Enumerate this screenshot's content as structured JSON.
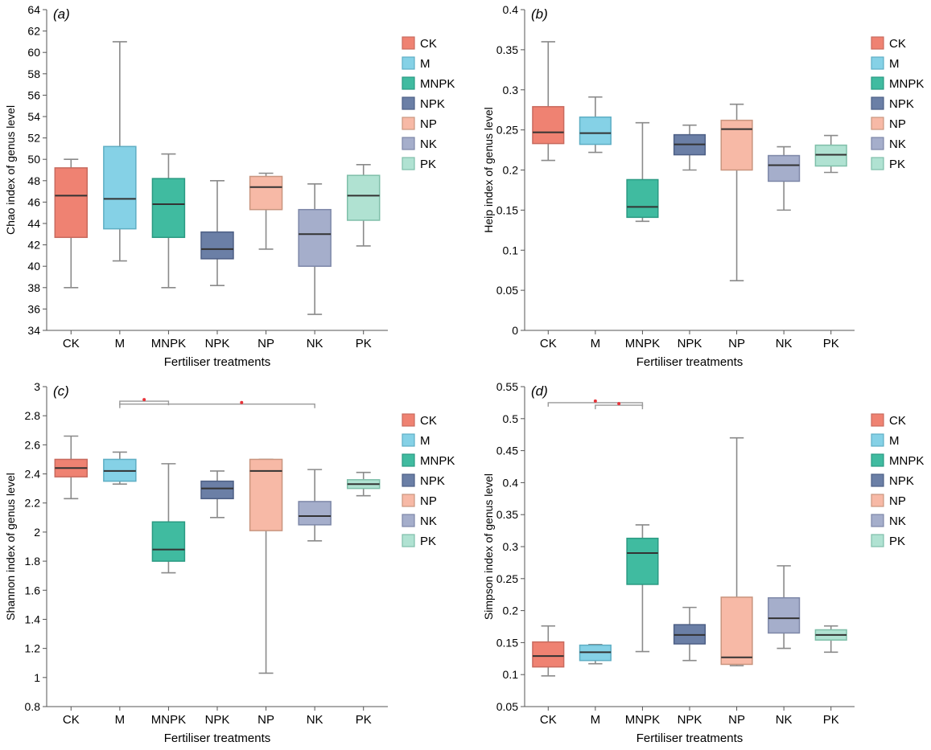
{
  "chart_data": [
    {
      "type": "box",
      "panel_label": "(a)",
      "ylabel": "Chao index of genus level",
      "xlabel": "Fertiliser treatments",
      "ylim": [
        34,
        64
      ],
      "yticks": [
        34,
        36,
        38,
        40,
        42,
        44,
        46,
        48,
        50,
        52,
        54,
        56,
        58,
        60,
        62,
        64
      ],
      "categories": [
        "CK",
        "M",
        "MNPK",
        "NPK",
        "NP",
        "NK",
        "PK"
      ],
      "boxes": [
        {
          "name": "CK",
          "min": 38.0,
          "q1": 42.7,
          "median": 46.6,
          "q3": 49.2,
          "max": 50.0
        },
        {
          "name": "M",
          "min": 40.5,
          "q1": 43.5,
          "median": 46.3,
          "q3": 51.2,
          "max": 61.0
        },
        {
          "name": "MNPK",
          "min": 38.0,
          "q1": 42.7,
          "median": 45.8,
          "q3": 48.2,
          "max": 50.5
        },
        {
          "name": "NPK",
          "min": 38.2,
          "q1": 40.7,
          "median": 41.6,
          "q3": 43.2,
          "max": 48.0
        },
        {
          "name": "NP",
          "min": 41.6,
          "q1": 45.3,
          "median": 47.4,
          "q3": 48.4,
          "max": 48.7
        },
        {
          "name": "NK",
          "min": 35.5,
          "q1": 40.0,
          "median": 43.0,
          "q3": 45.3,
          "max": 47.7
        },
        {
          "name": "PK",
          "min": 41.9,
          "q1": 44.3,
          "median": 46.6,
          "q3": 48.5,
          "max": 49.5
        }
      ],
      "legend": [
        "CK",
        "M",
        "MNPK",
        "NPK",
        "NP",
        "NK",
        "PK"
      ],
      "legend_position": "right",
      "significance": []
    },
    {
      "type": "box",
      "panel_label": "(b)",
      "ylabel": "Heip index of genus level",
      "xlabel": "Fertiliser treatments",
      "ylim": [
        0,
        0.4
      ],
      "yticks": [
        "0",
        "0.05",
        "0.1",
        "0.15",
        "0.2",
        "0.25",
        "0.3",
        "0.35",
        "0.4"
      ],
      "categories": [
        "CK",
        "M",
        "MNPK",
        "NPK",
        "NP",
        "NK",
        "PK"
      ],
      "boxes": [
        {
          "name": "CK",
          "min": 0.212,
          "q1": 0.233,
          "median": 0.247,
          "q3": 0.279,
          "max": 0.36
        },
        {
          "name": "M",
          "min": 0.222,
          "q1": 0.232,
          "median": 0.246,
          "q3": 0.266,
          "max": 0.291
        },
        {
          "name": "MNPK",
          "min": 0.136,
          "q1": 0.141,
          "median": 0.154,
          "q3": 0.188,
          "max": 0.259
        },
        {
          "name": "NPK",
          "min": 0.2,
          "q1": 0.219,
          "median": 0.232,
          "q3": 0.244,
          "max": 0.256
        },
        {
          "name": "NP",
          "min": 0.062,
          "q1": 0.2,
          "median": 0.251,
          "q3": 0.262,
          "max": 0.282
        },
        {
          "name": "NK",
          "min": 0.15,
          "q1": 0.186,
          "median": 0.206,
          "q3": 0.218,
          "max": 0.229
        },
        {
          "name": "PK",
          "min": 0.197,
          "q1": 0.205,
          "median": 0.219,
          "q3": 0.231,
          "max": 0.243
        }
      ],
      "legend": [
        "CK",
        "M",
        "MNPK",
        "NPK",
        "NP",
        "NK",
        "PK"
      ],
      "legend_position": "right",
      "significance": []
    },
    {
      "type": "box",
      "panel_label": "(c)",
      "ylabel": "Shannon index of genus level",
      "xlabel": "Fertiliser treatments",
      "ylim": [
        0.8,
        3
      ],
      "yticks": [
        "0.8",
        "1",
        "1.2",
        "1.4",
        "1.6",
        "1.8",
        "2",
        "2.2",
        "2.4",
        "2.6",
        "2.8",
        "3"
      ],
      "categories": [
        "CK",
        "M",
        "MNPK",
        "NPK",
        "NP",
        "NK",
        "PK"
      ],
      "boxes": [
        {
          "name": "CK",
          "min": 2.23,
          "q1": 2.38,
          "median": 2.44,
          "q3": 2.5,
          "max": 2.66
        },
        {
          "name": "M",
          "min": 2.33,
          "q1": 2.35,
          "median": 2.42,
          "q3": 2.5,
          "max": 2.55
        },
        {
          "name": "MNPK",
          "min": 1.72,
          "q1": 1.8,
          "median": 1.88,
          "q3": 2.07,
          "max": 2.47
        },
        {
          "name": "NPK",
          "min": 2.1,
          "q1": 2.23,
          "median": 2.3,
          "q3": 2.35,
          "max": 2.42
        },
        {
          "name": "NP",
          "min": 1.03,
          "q1": 2.01,
          "median": 2.42,
          "q3": 2.5,
          "max": 2.5
        },
        {
          "name": "NK",
          "min": 1.94,
          "q1": 2.05,
          "median": 2.11,
          "q3": 2.21,
          "max": 2.43
        },
        {
          "name": "PK",
          "min": 2.25,
          "q1": 2.3,
          "median": 2.33,
          "q3": 2.36,
          "max": 2.41
        }
      ],
      "legend": [
        "CK",
        "M",
        "MNPK",
        "NPK",
        "NP",
        "NK",
        "PK"
      ],
      "legend_position": "right",
      "significance": [
        {
          "from": "M",
          "to": "MNPK",
          "y": 2.9,
          "star_x": 1.5
        },
        {
          "from": "M",
          "to": "NK",
          "y": 2.88,
          "star_x": 3.5
        }
      ]
    },
    {
      "type": "box",
      "panel_label": "(d)",
      "ylabel": "Simpson index of genus level",
      "xlabel": "Fertiliser treatments",
      "ylim": [
        0.05,
        0.55
      ],
      "yticks": [
        "0.05",
        "0.1",
        "0.15",
        "0.2",
        "0.25",
        "0.3",
        "0.35",
        "0.4",
        "0.45",
        "0.5",
        "0.55"
      ],
      "categories": [
        "CK",
        "M",
        "MNPK",
        "NPK",
        "NP",
        "NK",
        "PK"
      ],
      "boxes": [
        {
          "name": "CK",
          "min": 0.098,
          "q1": 0.112,
          "median": 0.129,
          "q3": 0.151,
          "max": 0.176
        },
        {
          "name": "M",
          "min": 0.117,
          "q1": 0.122,
          "median": 0.135,
          "q3": 0.146,
          "max": 0.147
        },
        {
          "name": "MNPK",
          "min": 0.136,
          "q1": 0.241,
          "median": 0.29,
          "q3": 0.313,
          "max": 0.334
        },
        {
          "name": "NPK",
          "min": 0.122,
          "q1": 0.148,
          "median": 0.162,
          "q3": 0.178,
          "max": 0.205
        },
        {
          "name": "NP",
          "min": 0.114,
          "q1": 0.116,
          "median": 0.127,
          "q3": 0.221,
          "max": 0.47
        },
        {
          "name": "NK",
          "min": 0.141,
          "q1": 0.165,
          "median": 0.188,
          "q3": 0.22,
          "max": 0.27
        },
        {
          "name": "PK",
          "min": 0.135,
          "q1": 0.154,
          "median": 0.162,
          "q3": 0.17,
          "max": 0.176
        }
      ],
      "legend": [
        "CK",
        "M",
        "MNPK",
        "NPK",
        "NP",
        "NK",
        "PK"
      ],
      "legend_position": "right",
      "significance": [
        {
          "from": "CK",
          "to": "MNPK",
          "y": 0.525,
          "star_x": 1.0
        },
        {
          "from": "M",
          "to": "MNPK",
          "y": 0.521,
          "star_x": 1.5
        }
      ]
    }
  ],
  "colors": {
    "CK": {
      "fill": "#ef8272",
      "stroke": "#c86a5e"
    },
    "M": {
      "fill": "#85d1e6",
      "stroke": "#5eaec4"
    },
    "MNPK": {
      "fill": "#40bba0",
      "stroke": "#2a9a82"
    },
    "NPK": {
      "fill": "#6b7fa6",
      "stroke": "#4d5f85"
    },
    "NP": {
      "fill": "#f7b9a6",
      "stroke": "#c9957f"
    },
    "NK": {
      "fill": "#a5aecb",
      "stroke": "#7d87a8"
    },
    "PK": {
      "fill": "#b0e2d2",
      "stroke": "#7fbfa9"
    },
    "whisker": "#8a8a8a",
    "median": "#333333",
    "significance_star": "#e8333a"
  }
}
